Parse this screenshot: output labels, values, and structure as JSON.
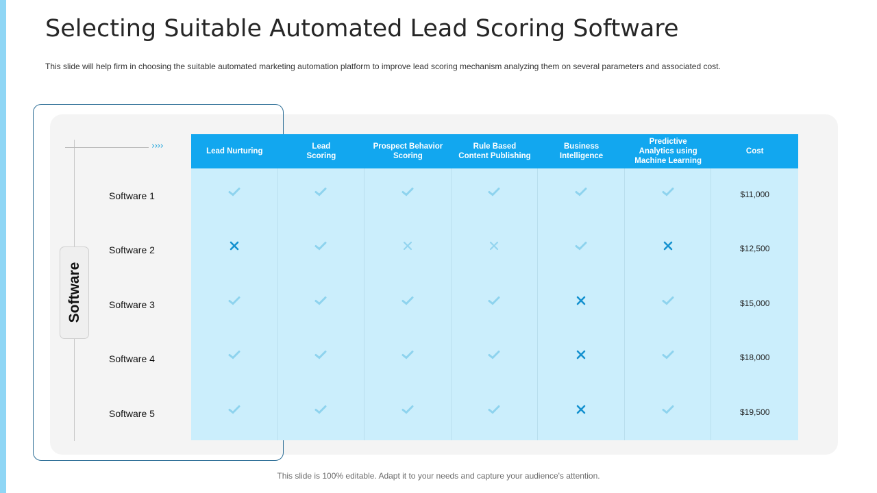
{
  "slide": {
    "title": "Selecting Suitable Automated Lead Scoring Software",
    "subtitle": "This slide will help firm in choosing the suitable automated marketing automation platform to improve  lead scoring mechanism analyzing them on several  parameters  and associated cost.",
    "footer": "This slide is 100% editable. Adapt it to your needs and capture your audience's attention.",
    "side_label": "Software",
    "arrow_glyph": "››››"
  },
  "colors": {
    "accent": "#12a7ef",
    "table_body": "#cbeefc",
    "check_light": "#8ed3ee",
    "cross_dark": "#1491cf",
    "cross_light": "#93d4ef"
  },
  "table": {
    "columns": [
      "Lead Nurturing",
      "Lead\nScoring",
      "Prospect Behavior\nScoring",
      "Rule Based\nContent Publishing",
      "Business\nIntelligence",
      "Predictive\nAnalytics using\nMachine Learning",
      "Cost"
    ],
    "rows": [
      {
        "name": "Software 1",
        "marks": [
          "check",
          "check",
          "check",
          "check",
          "check",
          "check"
        ],
        "cost": "$11,000"
      },
      {
        "name": "Software 2",
        "marks": [
          "cross",
          "check",
          "cross-light",
          "cross-light",
          "check",
          "cross"
        ],
        "cost": "$12,500"
      },
      {
        "name": "Software 3",
        "marks": [
          "check",
          "check",
          "check",
          "check",
          "cross",
          "check"
        ],
        "cost": "$15,000"
      },
      {
        "name": "Software 4",
        "marks": [
          "check",
          "check",
          "check",
          "check",
          "cross",
          "check"
        ],
        "cost": "$18,000"
      },
      {
        "name": "Software 5",
        "marks": [
          "check",
          "check",
          "check",
          "check",
          "cross",
          "check"
        ],
        "cost": "$19,500"
      }
    ]
  }
}
